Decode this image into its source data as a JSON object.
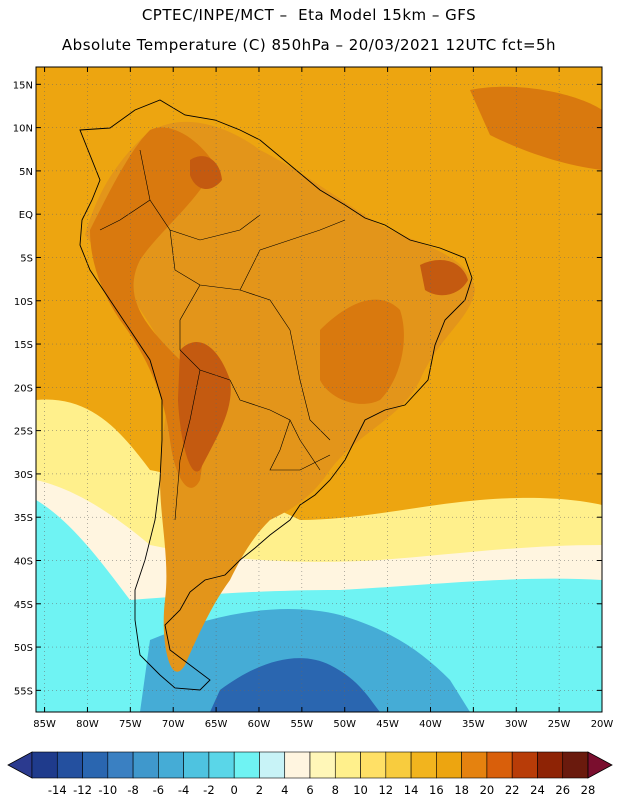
{
  "title_line1": "CPTEC/INPE/MCT –  Eta Model 15km – GFS",
  "title_line2": "Absolute Temperature (C) 850hPa – 20/03/2021 12UTC fct=5h",
  "lat_labels": [
    "15N",
    "10N",
    "5N",
    "EQ",
    "5S",
    "10S",
    "15S",
    "20S",
    "25S",
    "30S",
    "35S",
    "40S",
    "45S",
    "50S",
    "55S"
  ],
  "lon_labels": [
    "85W",
    "80W",
    "75W",
    "70W",
    "65W",
    "60W",
    "55W",
    "50W",
    "45W",
    "40W",
    "35W",
    "30W",
    "25W",
    "20W"
  ],
  "colorbar": {
    "labels": [
      "-14",
      "-12",
      "-10",
      "-8",
      "-6",
      "-4",
      "-2",
      "0",
      "2",
      "4",
      "6",
      "8",
      "10",
      "12",
      "14",
      "16",
      "18",
      "20",
      "22",
      "24",
      "26",
      "28"
    ],
    "colors": [
      "#1f3b8c",
      "#24509f",
      "#2a66b0",
      "#3a80c2",
      "#3f98cc",
      "#45acd6",
      "#4ec3e0",
      "#5ad6e8",
      "#6ff3f3",
      "#c8f3f7",
      "#fff5e0",
      "#fff7b8",
      "#fff08c",
      "#ffe066",
      "#f8cc3e",
      "#f2b41e",
      "#eda510",
      "#e5820f",
      "#d95f0b",
      "#b83c08",
      "#8e2305",
      "#6a1a0d"
    ],
    "under_color": "#2b3a8f",
    "over_color": "#7a0e2e"
  },
  "palette": {
    "ocean": "#eda510",
    "land_main": "#e3951a",
    "hot": "#d9790e",
    "very_hot": "#c45a10",
    "cool_yellow": "#fff08c",
    "cream": "#fff5e0",
    "cyan": "#6ff3f3",
    "sky": "#45acd6",
    "blue": "#2a66b0"
  }
}
